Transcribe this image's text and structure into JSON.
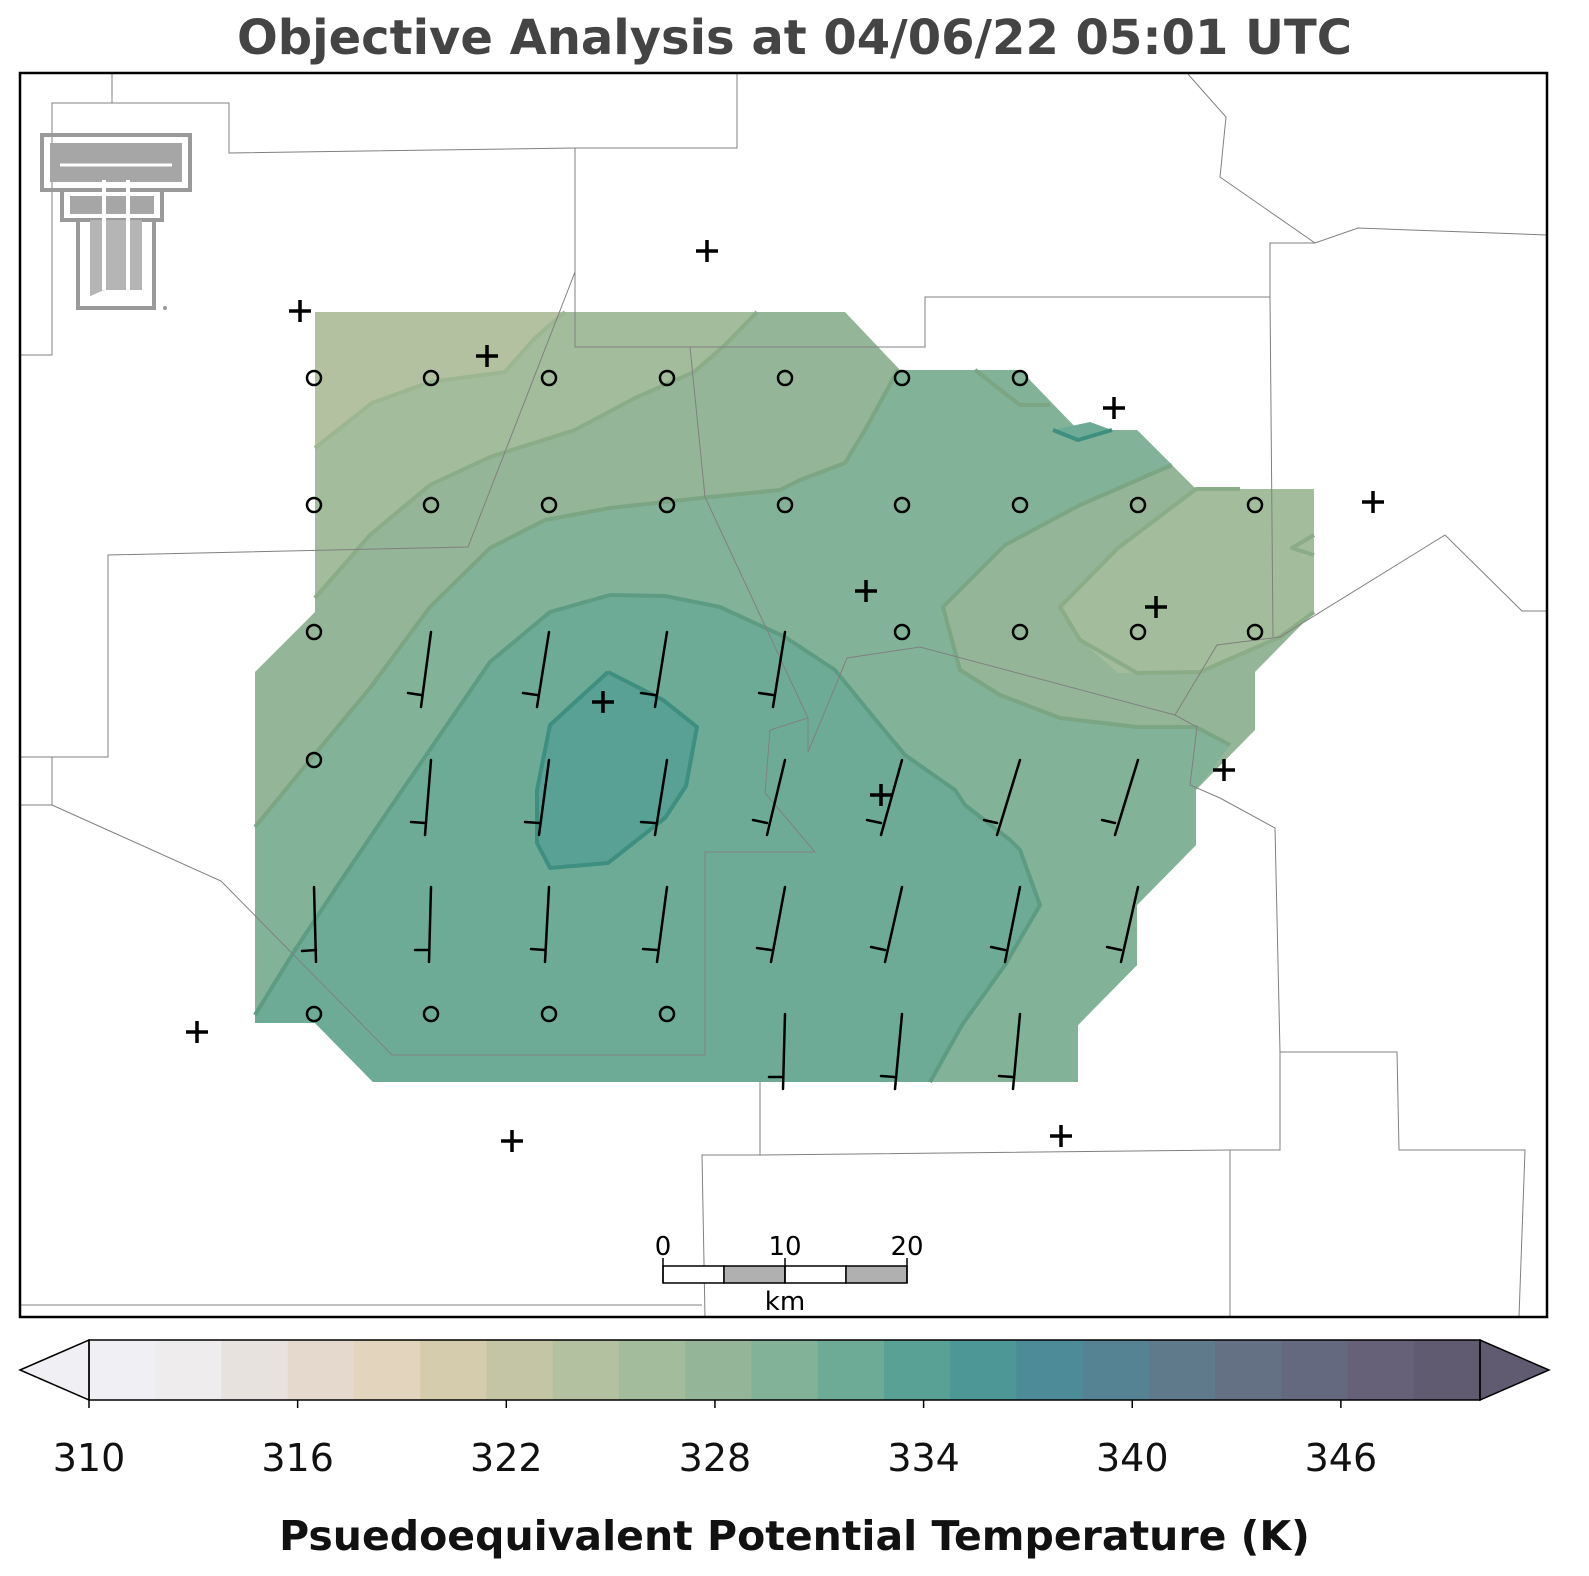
{
  "title": "Objective Analysis at 04/06/22 05:01 UTC",
  "colorbar": {
    "label": "Psuedoequivalent Potential Temperature (K)",
    "tick_labels": [
      "310",
      "316",
      "322",
      "328",
      "334",
      "340",
      "346"
    ],
    "min": 310,
    "max": 350,
    "step": 2,
    "colors": [
      "#f0eff3",
      "#eeecec",
      "#e8e2df",
      "#e5d8cc",
      "#e3d4bd",
      "#d5ccad",
      "#c4c5a4",
      "#b4c1a0",
      "#a3bc9b",
      "#94b597",
      "#82b298",
      "#6eab97",
      "#58a194",
      "#4d9896",
      "#4c8b97",
      "#568394",
      "#5e7a8b",
      "#647083",
      "#65697f",
      "#666079",
      "#615b71"
    ],
    "under_color": "#f0eff3",
    "over_color": "#615b71"
  },
  "scale_bar": {
    "unit": "km",
    "tick_labels": [
      "0",
      "10",
      "20"
    ]
  },
  "logo": "texas-tech-double-t-logo",
  "chart_data": {
    "type": "contour-map",
    "variable": "Psuedoequivalent Potential Temperature (K)",
    "contour_levels_k": [
      322,
      324,
      326,
      328,
      330,
      332
    ],
    "max_region_k": 332,
    "wind_barb_speed_kt": 10,
    "calm_marker": "open-circle",
    "station_marker": "plus"
  }
}
